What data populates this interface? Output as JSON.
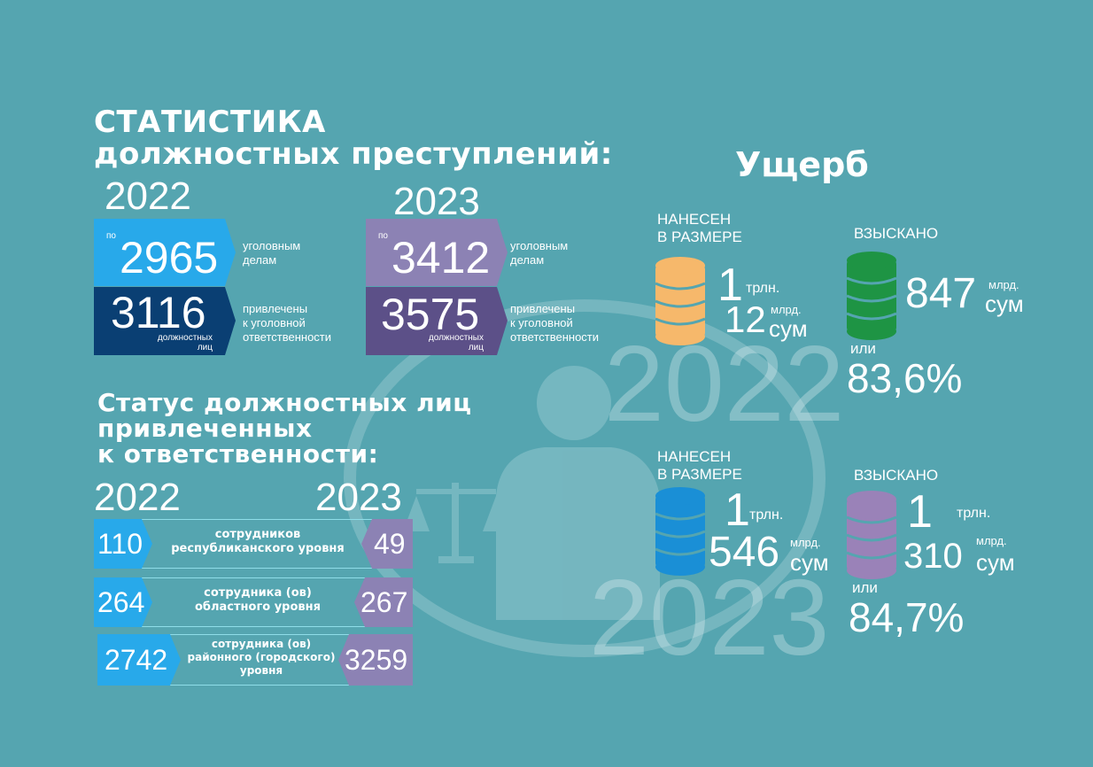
{
  "title": {
    "line1": "СТАТИСТИКА",
    "line2": "должностных преступлений:"
  },
  "stats": {
    "y2022": {
      "year": "2022",
      "prefix": "по",
      "cases": "2965",
      "cases_desc": [
        "уголовным",
        "делам"
      ],
      "persons": "3116",
      "persons_small": [
        "должностных",
        "лиц"
      ],
      "persons_desc": [
        "привлечены",
        "к уголовной",
        "ответственности"
      ]
    },
    "y2023": {
      "year": "2023",
      "prefix": "по",
      "cases": "3412",
      "cases_desc": [
        "уголовным",
        "делам"
      ],
      "persons": "3575",
      "persons_small": [
        "должностных",
        "лиц"
      ],
      "persons_desc": [
        "привлечены",
        "к уголовной",
        "ответственности"
      ]
    }
  },
  "status": {
    "title": [
      "Статус должностных лиц",
      "привлеченных",
      "к ответственности:"
    ],
    "year_left": "2022",
    "year_right": "2023",
    "rows": [
      {
        "left": "110",
        "label": [
          "сотрудников",
          "республиканского уровня"
        ],
        "right": "49"
      },
      {
        "left": "264",
        "label": [
          "сотрудника (ов)",
          "областного уровня"
        ],
        "right": "267"
      },
      {
        "left": "2742",
        "label": [
          "сотрудника (ов)",
          "районного (городского)",
          "уровня"
        ],
        "right": "3259"
      }
    ]
  },
  "damage": {
    "title": "Ущерб",
    "bg_year_top": "2022",
    "bg_year_bottom": "2023",
    "y2022": {
      "caused_label": [
        "НАНЕСЕН",
        "В РАЗМЕРЕ"
      ],
      "caused_trln": "1",
      "trln_unit": "трлн.",
      "caused_mlrd": "12",
      "mlrd_unit": "млрд.",
      "sum_unit": "сум",
      "recovered_label": "ВЗЫСКАНО",
      "recovered_mlrd": "847",
      "recovered_mlrd_unit": "млрд.",
      "recovered_sum_unit": "сум",
      "or_label": "или",
      "percent": "83,6%"
    },
    "y2023": {
      "caused_label": [
        "НАНЕСЕН",
        "В РАЗМЕРЕ"
      ],
      "caused_trln": "1",
      "trln_unit": "трлн.",
      "caused_mlrd": "546",
      "mlrd_unit": "млрд.",
      "sum_unit": "сум",
      "recovered_label": "ВЗЫСКАНО",
      "recovered_trln": "1",
      "recovered_trln_unit": "трлн.",
      "recovered_mlrd": "310",
      "recovered_mlrd_unit": "млрд.",
      "recovered_sum_unit": "сум",
      "or_label": "или",
      "percent": "84,7%"
    }
  },
  "colors": {
    "background": "#55a5b0",
    "blue_light": "#28a9ea",
    "blue_dark": "#0a3f73",
    "purple_light": "#8c82b4",
    "purple_dark": "#5c5088",
    "coin_orange": "#f6b86b",
    "coin_green": "#1e9444",
    "coin_blue": "#1a8fd6",
    "coin_purple": "#9a82b8"
  },
  "icons": {
    "coins": "coin-stack-icon",
    "scales": "scales-icon",
    "official": "official-figure-icon"
  }
}
